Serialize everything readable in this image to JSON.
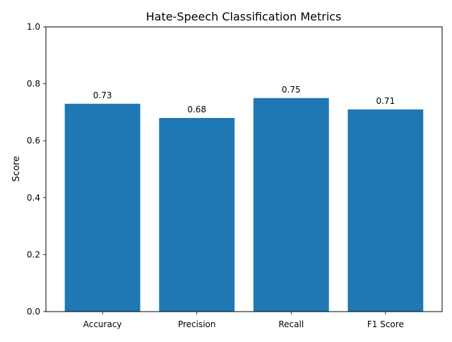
{
  "chart_data": {
    "type": "bar",
    "title": "Hate-Speech Classification Metrics",
    "xlabel": "",
    "ylabel": "Score",
    "categories": [
      "Accuracy",
      "Precision",
      "Recall",
      "F1 Score"
    ],
    "values": [
      0.73,
      0.68,
      0.75,
      0.71
    ],
    "data_labels": [
      "0.73",
      "0.68",
      "0.75",
      "0.71"
    ],
    "ylim": [
      0,
      1.0
    ],
    "yticks": [
      0.0,
      0.2,
      0.4,
      0.6,
      0.8,
      1.0
    ],
    "ytick_labels": [
      "0.0",
      "0.2",
      "0.4",
      "0.6",
      "0.8",
      "1.0"
    ],
    "grid": false,
    "colors": {
      "bar": "#1f77b4",
      "axis": "#000000"
    }
  }
}
